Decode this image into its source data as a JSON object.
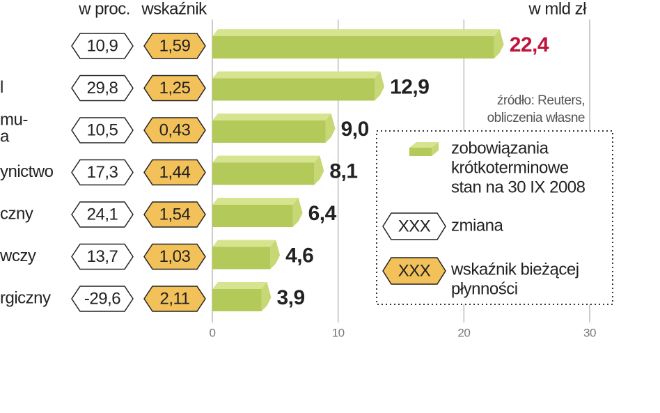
{
  "chart_data": {
    "type": "bar",
    "header_change": "w proc.",
    "header_ratio": "wskaźnik",
    "unit_label": "w mld zł",
    "categories": [
      null,
      "l",
      [
        "mu-",
        "a"
      ],
      "ynictwo",
      "czny",
      "wczy",
      "rgiczny"
    ],
    "values": [
      22.4,
      12.9,
      9.0,
      8.1,
      6.4,
      4.6,
      3.9
    ],
    "value_labels": [
      "22,4",
      "12,9",
      "9,0",
      "8,1",
      "6,4",
      "4,6",
      "3,9"
    ],
    "highlight_color": "#c0143c",
    "change": [
      "10,9",
      "29,8",
      "10,5",
      "17,3",
      "24,1",
      "13,7",
      "-29,6"
    ],
    "ratio": [
      "1,59",
      "1,25",
      "0,43",
      "1,44",
      "1,54",
      "1,03",
      "2,11"
    ],
    "color": "#b3c95a",
    "top_color": "#d7e48f",
    "side_color": "#c6d774",
    "xlim": [
      0,
      30
    ],
    "xticks": [
      0,
      10,
      20,
      30
    ],
    "grid": true,
    "source": [
      "źródło: Reuters,",
      "obliczenia własne"
    ],
    "legend": {
      "bar": [
        "zobowiązania",
        "krótkoterminowe",
        "stan na 30 IX 2008"
      ],
      "change_symbol": "XXX",
      "change": "zmiana",
      "ratio_symbol": "XXX",
      "ratio": [
        "wskaźnik bieżącej",
        "płynności"
      ]
    }
  }
}
